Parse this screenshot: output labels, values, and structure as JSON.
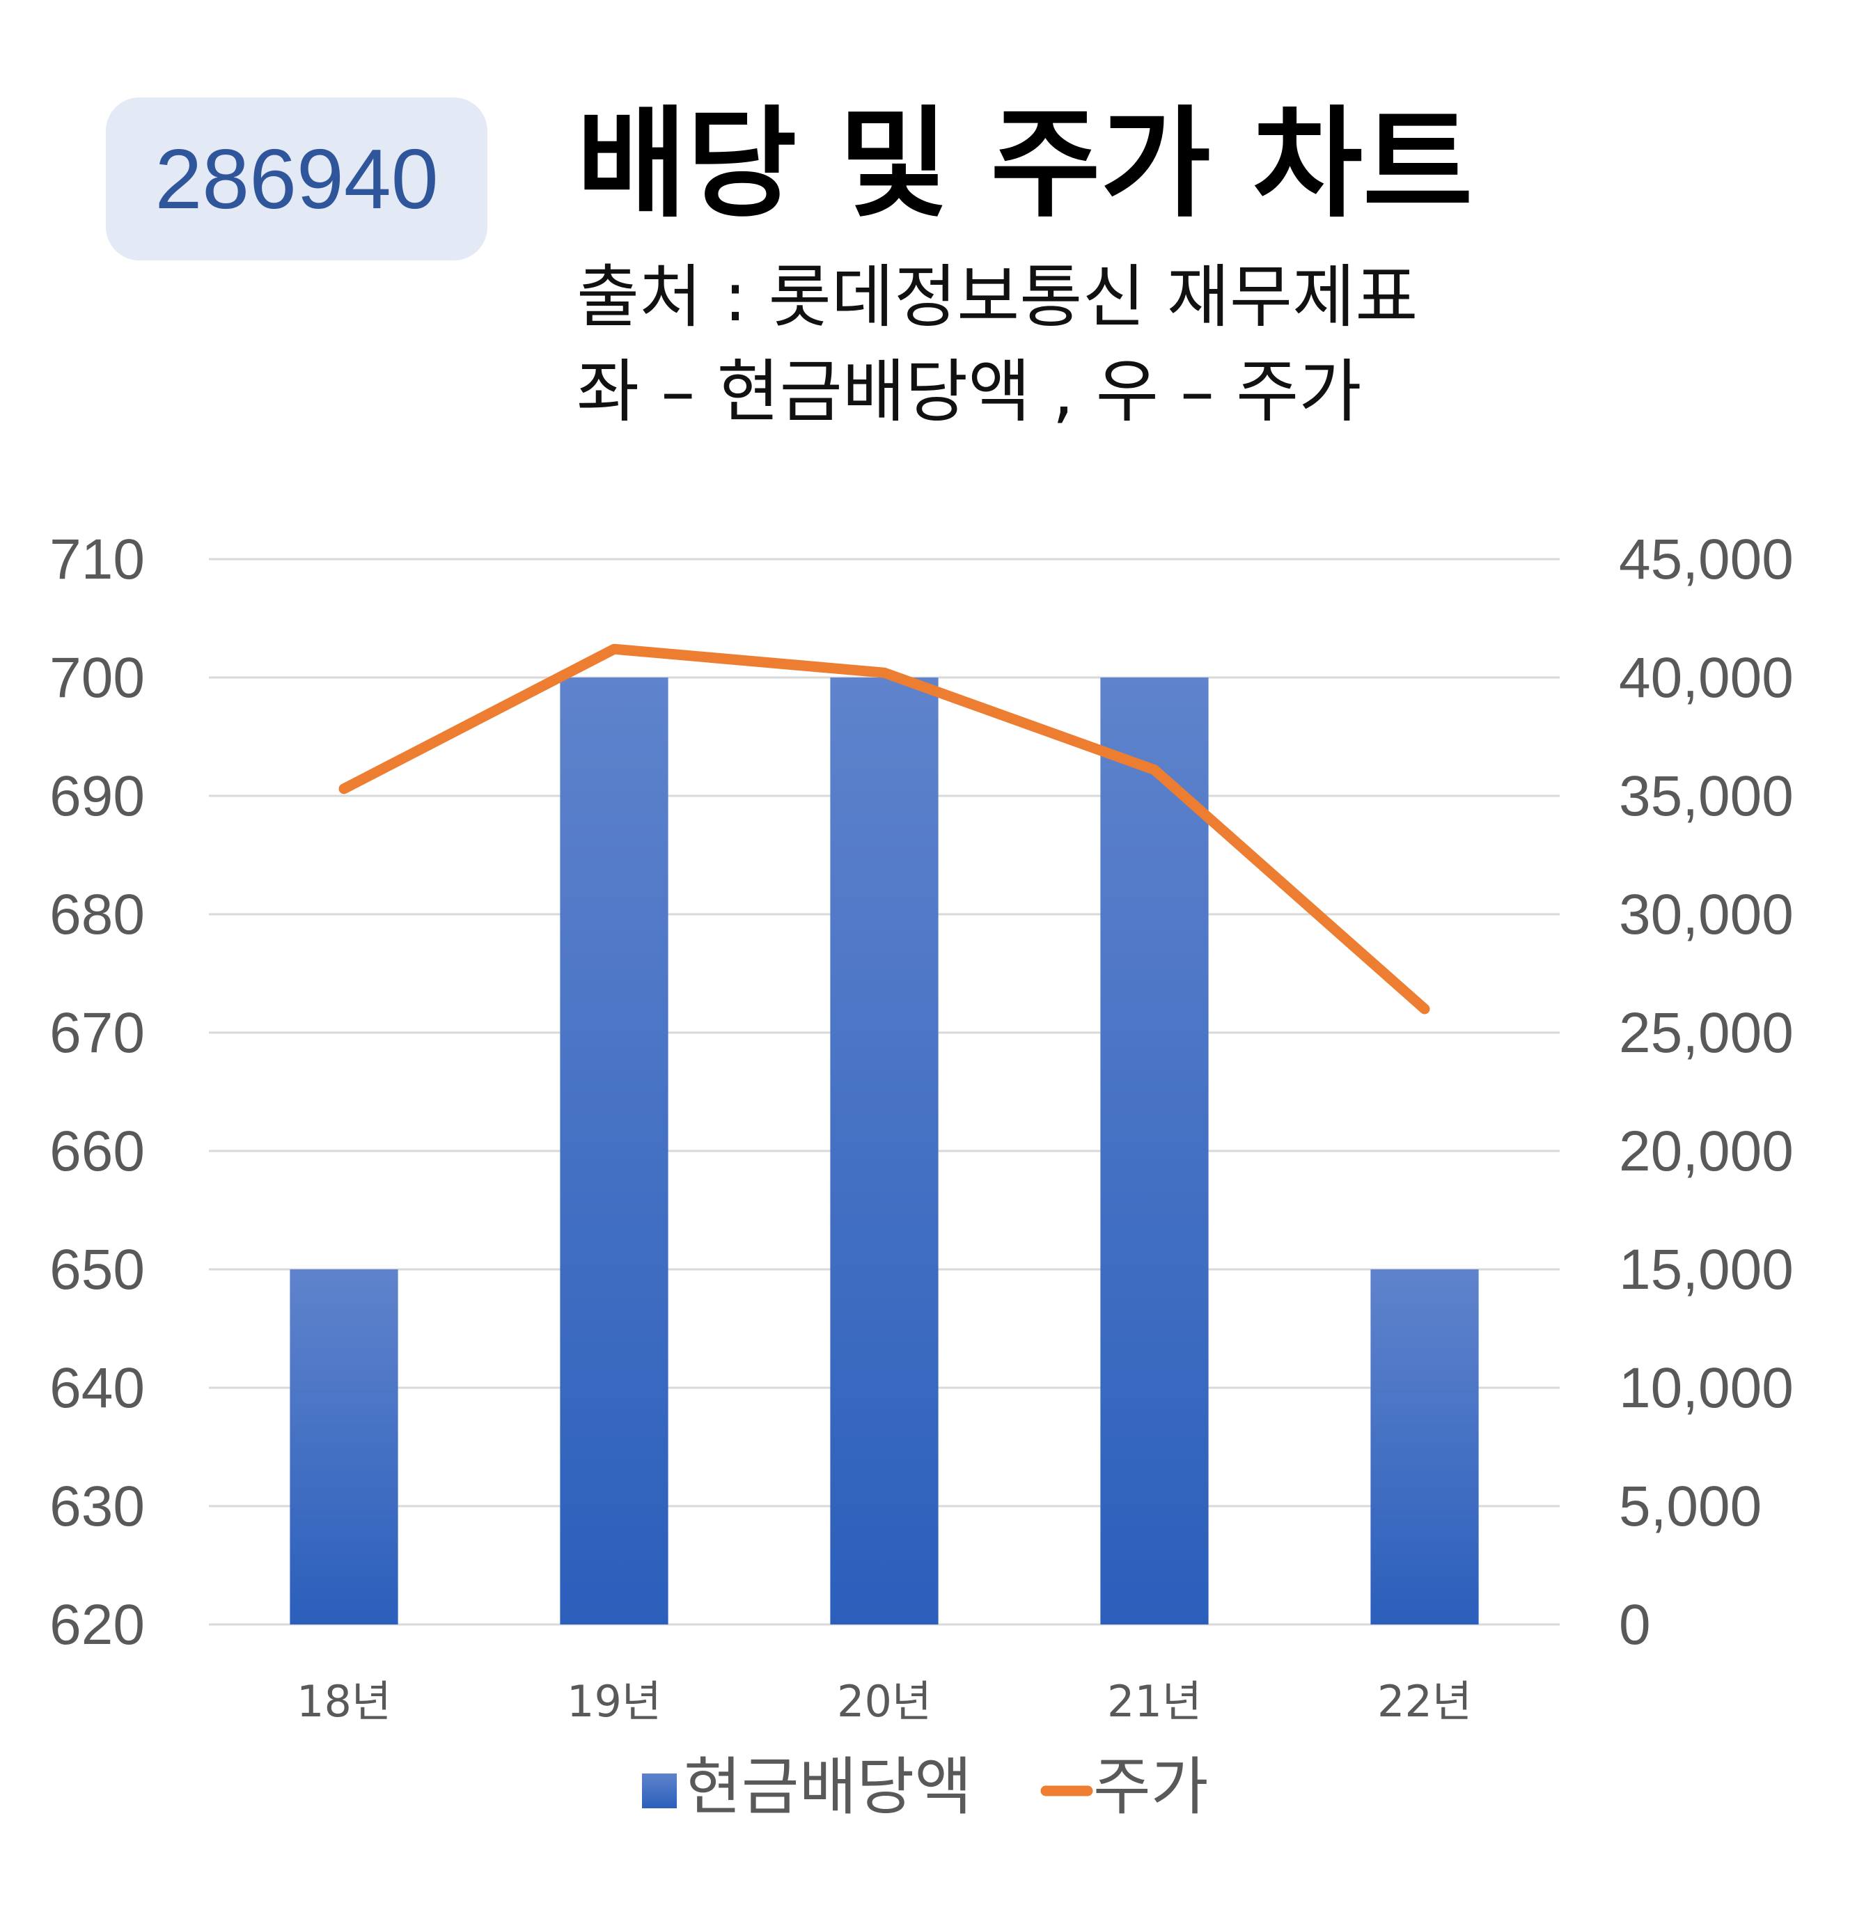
{
  "header": {
    "code": "286940",
    "title": "배당 및 주가 차트",
    "subtitle_line1": "출처 : 롯데정보통신 재무제표",
    "subtitle_line2": "좌 – 현금배당액 , 우 – 주가"
  },
  "colors": {
    "bar_top": "#5f83cc",
    "bar_bottom": "#2b5fbb",
    "line": "#ed7d31",
    "grid": "#d9d9d9",
    "axis_text": "#595959"
  },
  "chart_data": {
    "type": "bar",
    "categories": [
      "18년",
      "19년",
      "20년",
      "21년",
      "22년"
    ],
    "series": [
      {
        "name": "현금배당액",
        "type": "bar",
        "axis": "left",
        "values": [
          650,
          700,
          700,
          700,
          650
        ]
      },
      {
        "name": "주가",
        "type": "line",
        "axis": "right",
        "values": [
          35300,
          41200,
          40200,
          36100,
          26000
        ]
      }
    ],
    "left_axis": {
      "range": [
        620,
        710
      ],
      "ticks": [
        "710",
        "700",
        "690",
        "680",
        "670",
        "660",
        "650",
        "640",
        "630",
        "620"
      ]
    },
    "right_axis": {
      "range": [
        0,
        45000
      ],
      "ticks": [
        "45,000",
        "40,000",
        "35,000",
        "30,000",
        "25,000",
        "20,000",
        "15,000",
        "10,000",
        "5,000",
        "0"
      ]
    },
    "grid": true,
    "legend_position": "bottom"
  }
}
